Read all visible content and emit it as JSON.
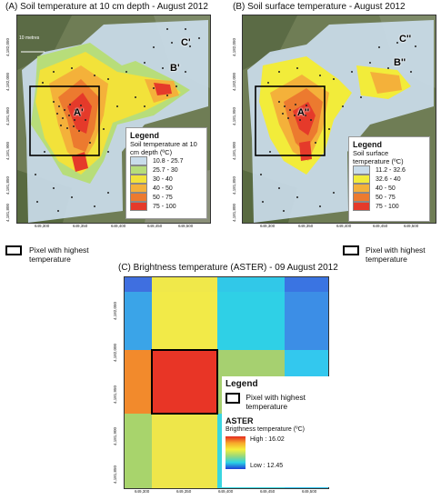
{
  "panel_a": {
    "title": "(A) Soil temperature at 10 cm depth - August 2012",
    "scale": "10 metres",
    "point_labels": [
      "A'",
      "B'",
      "C'"
    ],
    "x_ticks": [
      "649,300",
      "649,350",
      "649,400",
      "649,450",
      "649,500"
    ],
    "y_ticks": [
      "4,182,050",
      "4,182,000",
      "4,181,950",
      "4,181,900",
      "4,181,850",
      "4,181,800"
    ],
    "legend": {
      "title": "Legend",
      "subtitle": "Soil temperature at 10 cm depth (ºC)",
      "classes": [
        {
          "label": "10.8 - 25.7",
          "color": "#c9dcea"
        },
        {
          "label": "25.7 - 30",
          "color": "#b7dd7a"
        },
        {
          "label": "30 - 40",
          "color": "#f2e23a"
        },
        {
          "label": "40 - 50",
          "color": "#f4b13a"
        },
        {
          "label": "50 - 75",
          "color": "#ec7a2f"
        },
        {
          "label": "75 - 100",
          "color": "#e53a2a"
        }
      ]
    },
    "pixel_legend": "Pixel with highest temperature"
  },
  "panel_b": {
    "title": "(B) Soil surface temperature - August 2012",
    "point_labels": [
      "A''",
      "B''",
      "C''"
    ],
    "x_ticks": [
      "649,300",
      "649,350",
      "649,400",
      "649,450",
      "649,500"
    ],
    "y_ticks": [
      "4,182,050",
      "4,182,000",
      "4,181,950",
      "4,181,900",
      "4,181,850",
      "4,181,800"
    ],
    "legend": {
      "title": "Legend",
      "subtitle": "Soil surface temperature (ºC)",
      "classes": [
        {
          "label": "11.2 - 32.6",
          "color": "#c9dcea"
        },
        {
          "label": "32.6 - 40",
          "color": "#f2ec3a"
        },
        {
          "label": "40 - 50",
          "color": "#f4b13a"
        },
        {
          "label": "50 - 75",
          "color": "#ec7a2f"
        },
        {
          "label": "75 - 100",
          "color": "#e53a2a"
        }
      ]
    },
    "pixel_legend": "Pixel with highest temperature"
  },
  "panel_c": {
    "title": "(C) Brightness temperature (ASTER) - 09 August 2012",
    "x_ticks": [
      "649,300",
      "649,350",
      "649,400",
      "649,450",
      "649,500"
    ],
    "y_ticks": [
      "4,182,050",
      "4,182,000",
      "4,181,950",
      "4,181,900",
      "4,181,850"
    ],
    "grid_colors": [
      [
        "#3f6fe0",
        "#f0e84a",
        "#31c8e8",
        "#3a74e2"
      ],
      [
        "#3aa4e8",
        "#f2ea48",
        "#2fd0e6",
        "#3c8ee6"
      ],
      [
        "#f28a2c",
        "#e83526",
        "#a6d070",
        "#33c8ee"
      ],
      [
        "#a8d46c",
        "#eee64a",
        "#39d6e0",
        "#32c4ee"
      ]
    ],
    "legend": {
      "title": "Legend",
      "pixel_label": "Pixel with highest temperature",
      "sensor": "ASTER",
      "subtitle": "Brigthness temperature (ºC)",
      "high": "High : 16.02",
      "low": "Low : 12.45"
    }
  }
}
